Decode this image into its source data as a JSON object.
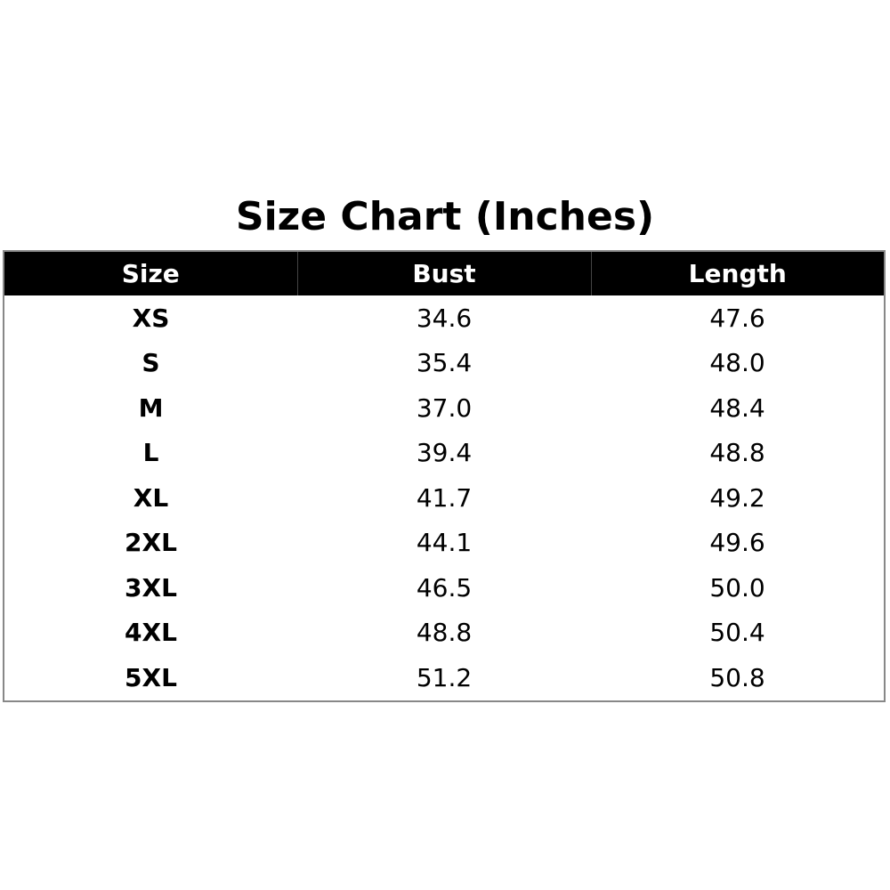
{
  "title": "Size Chart (Inches)",
  "table": {
    "header": [
      "Size",
      "Bust",
      "Length"
    ],
    "rows": [
      [
        "XS",
        "34.6",
        "47.6"
      ],
      [
        "S",
        "35.4",
        "48.0"
      ],
      [
        "M",
        "37.0",
        "48.4"
      ],
      [
        "L",
        "39.4",
        "48.8"
      ],
      [
        "XL",
        "41.7",
        "49.2"
      ],
      [
        "2XL",
        "44.1",
        "49.6"
      ],
      [
        "3XL",
        "46.5",
        "50.0"
      ],
      [
        "4XL",
        "48.8",
        "50.4"
      ],
      [
        "5XL",
        "51.2",
        "50.8"
      ]
    ]
  }
}
